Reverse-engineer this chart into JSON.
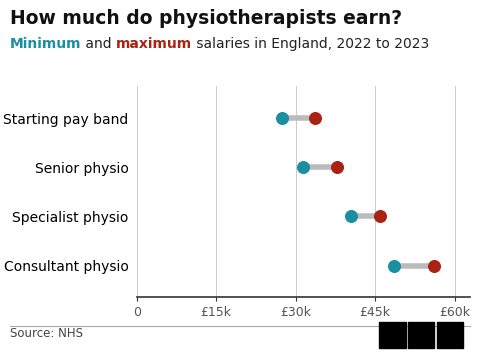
{
  "title": "How much do physiotherapists earn?",
  "subtitle_parts": [
    {
      "text": "Minimum",
      "color": "#1a8fa0",
      "bold": true
    },
    {
      "text": " and ",
      "color": "#222222",
      "bold": false
    },
    {
      "text": "maximum",
      "color": "#aa2211",
      "bold": true
    },
    {
      "text": " salaries in England, 2022 to 2023",
      "color": "#222222",
      "bold": false
    }
  ],
  "categories": [
    "Starting pay band",
    "Senior physio",
    "Specialist physio",
    "Consultant physio"
  ],
  "min_values": [
    27500,
    31365,
    40500,
    48526
  ],
  "max_values": [
    33706,
    37890,
    46000,
    56164
  ],
  "min_color": "#1a8fa0",
  "max_color": "#aa2211",
  "connector_color": "#bbbbbb",
  "xlabel_ticks": [
    0,
    15000,
    30000,
    45000,
    60000
  ],
  "xlabel_labels": [
    "0",
    "£15k",
    "£30k",
    "£45k",
    "£60k"
  ],
  "source_text": "Source: NHS",
  "background_color": "#ffffff",
  "title_fontsize": 13.5,
  "subtitle_fontsize": 10,
  "category_fontsize": 10,
  "tick_fontsize": 9,
  "source_fontsize": 8.5,
  "dot_size": 70,
  "connector_lw": 4,
  "grid_color": "#cccccc",
  "xlim": [
    0,
    63000
  ]
}
